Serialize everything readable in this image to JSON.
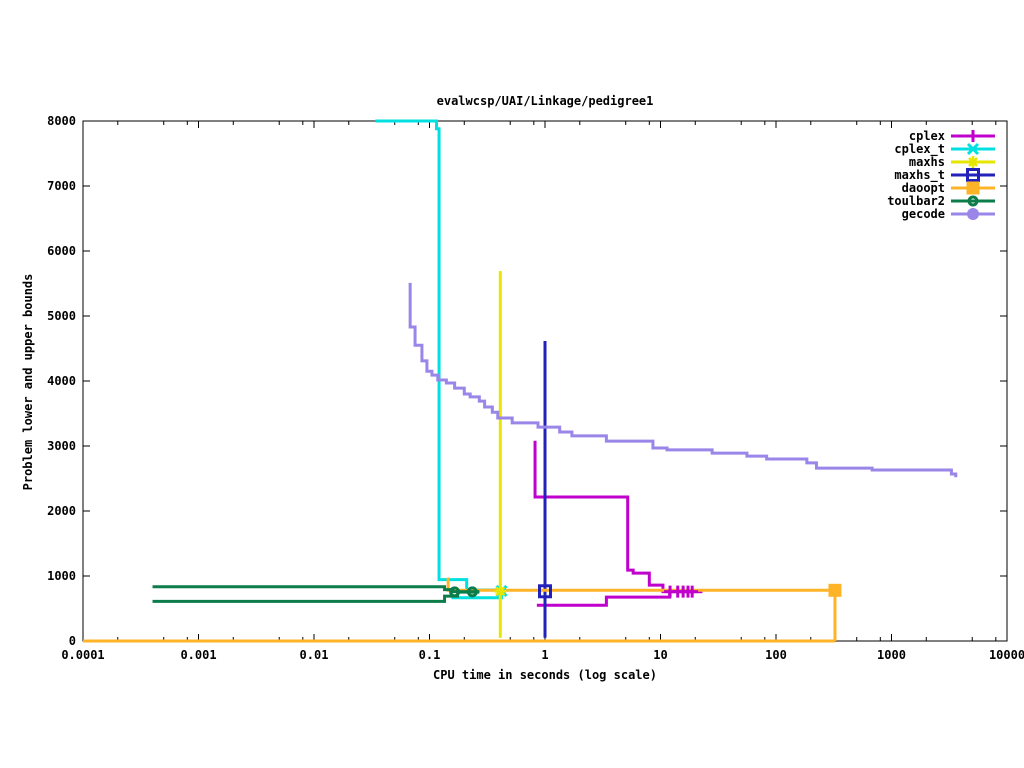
{
  "chart_data": {
    "type": "line",
    "title": "evalwcsp/UAI/Linkage/pedigree1",
    "xlabel": "CPU time in seconds (log scale)",
    "ylabel": "Problem lower and upper bounds",
    "x_scale": "log",
    "xlim": [
      0.0001,
      10000
    ],
    "ylim": [
      0,
      8000
    ],
    "grid": false,
    "legend_position": "top-right-inside",
    "x_ticks": [
      {
        "v": 0.0001,
        "label": "0.0001"
      },
      {
        "v": 0.001,
        "label": "0.001"
      },
      {
        "v": 0.01,
        "label": "0.01"
      },
      {
        "v": 0.1,
        "label": "0.1"
      },
      {
        "v": 1,
        "label": "1"
      },
      {
        "v": 10,
        "label": "10"
      },
      {
        "v": 100,
        "label": "100"
      },
      {
        "v": 1000,
        "label": "1000"
      },
      {
        "v": 10000,
        "label": "10000"
      }
    ],
    "x_minor_multiples": [
      2,
      5,
      8
    ],
    "y_ticks": [
      {
        "v": 0,
        "label": "0"
      },
      {
        "v": 1000,
        "label": "1000"
      },
      {
        "v": 2000,
        "label": "2000"
      },
      {
        "v": 3000,
        "label": "3000"
      },
      {
        "v": 4000,
        "label": "4000"
      },
      {
        "v": 5000,
        "label": "5000"
      },
      {
        "v": 6000,
        "label": "6000"
      },
      {
        "v": 7000,
        "label": "7000"
      },
      {
        "v": 8000,
        "label": "8000"
      }
    ],
    "series": [
      {
        "name": "cplex",
        "color": "#c000cc",
        "marker": "plus",
        "paths": [
          [
            [
              0.82,
              3080
            ],
            [
              0.82,
              2215
            ],
            [
              5.2,
              2215
            ],
            [
              5.2,
              1090
            ],
            [
              5.8,
              1090
            ],
            [
              5.8,
              1045
            ],
            [
              8,
              1045
            ],
            [
              8,
              860
            ],
            [
              10.5,
              860
            ],
            [
              10.5,
              760
            ],
            [
              23,
              760
            ]
          ],
          [
            [
              0.85,
              550
            ],
            [
              3.4,
              550
            ],
            [
              3.4,
              675
            ],
            [
              12,
              675
            ],
            [
              12,
              760
            ],
            [
              23,
              760
            ]
          ]
        ],
        "marker_points": [
          [
            12.1,
            760
          ],
          [
            14.1,
            760
          ],
          [
            15.7,
            760
          ],
          [
            17.3,
            760
          ],
          [
            18.8,
            760
          ]
        ]
      },
      {
        "name": "cplex_t",
        "color": "#00e0e0",
        "marker": "cross",
        "paths": [
          [
            [
              0.034,
              8000
            ],
            [
              0.115,
              8000
            ],
            [
              0.115,
              7880
            ],
            [
              0.121,
              7880
            ],
            [
              0.121,
              945
            ],
            [
              0.21,
              945
            ],
            [
              0.21,
              785
            ],
            [
              0.46,
              785
            ]
          ],
          [
            [
              0.155,
              665
            ],
            [
              0.42,
              665
            ],
            [
              0.42,
              770
            ]
          ]
        ],
        "marker_points": [
          [
            0.42,
            770
          ]
        ]
      },
      {
        "name": "maxhs",
        "color": "#e6e600",
        "marker": "star",
        "paths": [
          [
            [
              0.41,
              5690
            ],
            [
              0.41,
              50
            ]
          ]
        ],
        "marker_points": [
          [
            0.41,
            765
          ]
        ]
      },
      {
        "name": "maxhs_t",
        "color": "#2222bb",
        "marker": "open-square",
        "paths": [
          [
            [
              1.0,
              4615
            ],
            [
              1.0,
              50
            ]
          ]
        ],
        "marker_points": [
          [
            1.0,
            765
          ]
        ]
      },
      {
        "name": "daoopt",
        "color": "#ffb428",
        "marker": "filled-square",
        "paths": [
          [
            [
              0.145,
              975
            ],
            [
              0.145,
              780
            ],
            [
              324,
              780
            ],
            [
              324,
              0
            ]
          ],
          [
            [
              0.0001,
              0
            ],
            [
              324,
              0
            ]
          ]
        ],
        "marker_points": [
          [
            324,
            780
          ]
        ]
      },
      {
        "name": "toulbar2",
        "color": "#0c7d4a",
        "marker": "open-circle",
        "paths": [
          [
            [
              0.0004,
              835
            ],
            [
              0.135,
              835
            ],
            [
              0.135,
              790
            ],
            [
              0.16,
              790
            ],
            [
              0.16,
              760
            ],
            [
              0.27,
              760
            ]
          ],
          [
            [
              0.0004,
              610
            ],
            [
              0.135,
              610
            ],
            [
              0.135,
              690
            ],
            [
              0.175,
              690
            ],
            [
              0.175,
              752
            ],
            [
              0.27,
              752
            ]
          ]
        ],
        "marker_points": [
          [
            0.165,
            756
          ],
          [
            0.235,
            756
          ]
        ]
      },
      {
        "name": "gecode",
        "color": "#9a85e8",
        "marker": "filled-circle",
        "paths": [
          [
            [
              0.068,
              5510
            ],
            [
              0.068,
              4830
            ],
            [
              0.075,
              4830
            ],
            [
              0.075,
              4550
            ],
            [
              0.086,
              4310
            ],
            [
              0.095,
              4150
            ],
            [
              0.105,
              4090
            ],
            [
              0.118,
              4015
            ],
            [
              0.14,
              3970
            ],
            [
              0.165,
              3890
            ],
            [
              0.2,
              3800
            ],
            [
              0.225,
              3755
            ],
            [
              0.27,
              3690
            ],
            [
              0.3,
              3600
            ],
            [
              0.35,
              3520
            ],
            [
              0.39,
              3430
            ],
            [
              0.52,
              3430
            ],
            [
              0.52,
              3355
            ],
            [
              0.87,
              3355
            ],
            [
              0.87,
              3290
            ],
            [
              1.34,
              3215
            ],
            [
              1.71,
              3155
            ],
            [
              3.4,
              3155
            ],
            [
              3.4,
              3075
            ],
            [
              8.6,
              3075
            ],
            [
              8.6,
              2970
            ],
            [
              11.4,
              2940
            ],
            [
              28,
              2940
            ],
            [
              28,
              2890
            ],
            [
              56,
              2890
            ],
            [
              56,
              2845
            ],
            [
              83,
              2845
            ],
            [
              83,
              2800
            ],
            [
              185,
              2800
            ],
            [
              185,
              2740
            ],
            [
              224,
              2740
            ],
            [
              224,
              2660
            ],
            [
              272,
              2660
            ],
            [
              680,
              2630
            ],
            [
              3300,
              2570
            ],
            [
              3600,
              2520
            ]
          ]
        ],
        "marker_points": []
      }
    ]
  }
}
